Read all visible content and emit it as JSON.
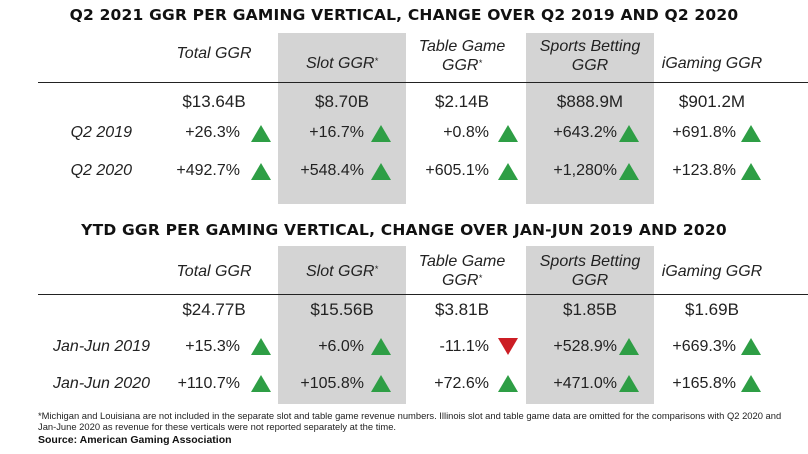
{
  "chart_data": [
    {
      "type": "table",
      "title": "Q2 2021 GGR PER GAMING VERTICAL, CHANGE OVER Q2 2019 AND Q2 2020",
      "columns": [
        {
          "name": "Total GGR",
          "note": ""
        },
        {
          "name": "Slot GGR",
          "note": "*"
        },
        {
          "name": "Table Game GGR",
          "note": "*"
        },
        {
          "name": "Sports Betting GGR",
          "note": ""
        },
        {
          "name": "iGaming GGR",
          "note": ""
        }
      ],
      "totals": [
        "$13.64B",
        "$8.70B",
        "$2.14B",
        "$888.9M",
        "$901.2M"
      ],
      "rows": [
        {
          "label": "Q2 2019",
          "values": [
            "+26.3%",
            "+16.7%",
            "+0.8%",
            "+643.2%",
            "+691.8%"
          ],
          "directions": [
            "up",
            "up",
            "up",
            "up",
            "up"
          ]
        },
        {
          "label": "Q2 2020",
          "values": [
            "+492.7%",
            "+548.4%",
            "+605.1%",
            "+1,280%",
            "+123.8%"
          ],
          "directions": [
            "up",
            "up",
            "up",
            "up",
            "up"
          ]
        }
      ]
    },
    {
      "type": "table",
      "title": "YTD GGR PER GAMING VERTICAL, CHANGE OVER JAN-JUN 2019 AND 2020",
      "columns": [
        {
          "name": "Total GGR",
          "note": ""
        },
        {
          "name": "Slot GGR",
          "note": "*"
        },
        {
          "name": "Table Game GGR",
          "note": "*"
        },
        {
          "name": "Sports Betting GGR",
          "note": ""
        },
        {
          "name": "iGaming GGR",
          "note": ""
        }
      ],
      "totals": [
        "$24.77B",
        "$15.56B",
        "$3.81B",
        "$1.85B",
        "$1.69B"
      ],
      "rows": [
        {
          "label": "Jan-Jun 2019",
          "values": [
            "+15.3%",
            "+6.0%",
            "-11.1%",
            "+528.9%",
            "+669.3%"
          ],
          "directions": [
            "up",
            "up",
            "down",
            "up",
            "up"
          ]
        },
        {
          "label": "Jan-Jun 2020",
          "values": [
            "+110.7%",
            "+105.8%",
            "+72.6%",
            "+471.0%",
            "+165.8%"
          ],
          "directions": [
            "up",
            "up",
            "up",
            "up",
            "up"
          ]
        }
      ]
    }
  ],
  "header_lines": [
    [
      "Total GGR"
    ],
    [
      "Slot GGR"
    ],
    [
      "Table Game",
      "GGR"
    ],
    [
      "Sports Betting",
      "GGR"
    ],
    [
      "iGaming GGR"
    ]
  ],
  "footnote": "*Michigan and Louisiana are not included in the separate slot and table game revenue numbers. Illinois slot and table game data are omitted for the comparisons with Q2 2020 and Jan-June 2020 as revenue for these verticals were not reported separately at the time.",
  "source": "Source: American Gaming Association",
  "colors": {
    "up": "#2e9e45",
    "down": "#cc1d24",
    "shade": "#d4d4d4"
  }
}
